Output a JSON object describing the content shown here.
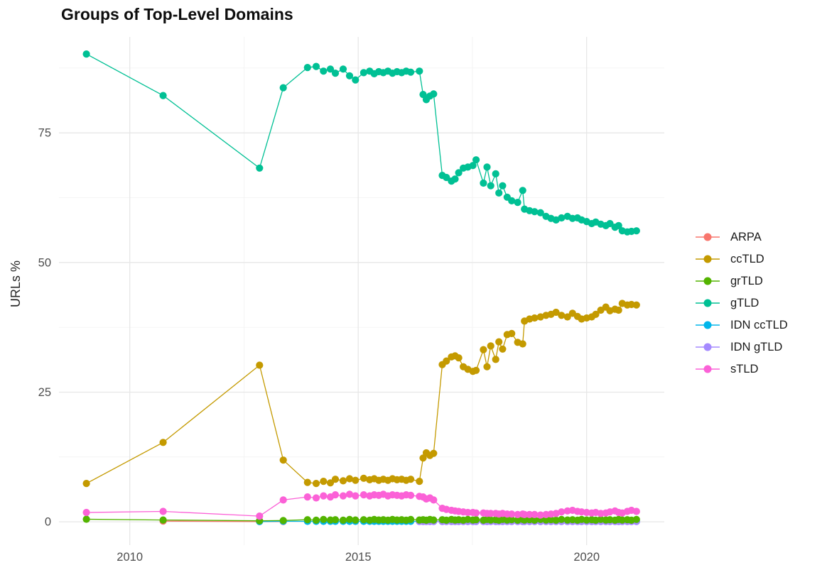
{
  "chart_data": {
    "type": "line",
    "title": "Groups of Top-Level Domains",
    "xlabel": "",
    "ylabel": "URLs %",
    "legend_position": "right",
    "grid": {
      "major_color": "#e7e7e7",
      "minor_color": "#f2f2f2",
      "background": "#ffffff"
    },
    "x_domain": [
      2008.45,
      2021.7
    ],
    "y_domain": [
      -4.5,
      93.5
    ],
    "x_ticks": [
      {
        "value": 2010,
        "label": "2010"
      },
      {
        "value": 2015,
        "label": "2015"
      },
      {
        "value": 2020,
        "label": "2020"
      }
    ],
    "x_minor": [
      2012.5,
      2017.5
    ],
    "y_ticks": [
      {
        "value": 0,
        "label": "0"
      },
      {
        "value": 25,
        "label": "25"
      },
      {
        "value": 50,
        "label": "50"
      },
      {
        "value": 75,
        "label": "75"
      }
    ],
    "y_minor": [
      12.5,
      37.5,
      62.5,
      87.5
    ],
    "draw_order": [
      "ARPA",
      "IDN ccTLD",
      "IDN gTLD",
      "ccTLD",
      "gTLD",
      "grTLD",
      "sTLD"
    ],
    "dense_x": [
      2013.89,
      2014.08,
      2014.24,
      2014.39,
      2014.5,
      2014.67,
      2014.81,
      2014.94,
      2015.12,
      2015.25,
      2015.35,
      2015.45,
      2015.55,
      2015.65,
      2015.75,
      2015.85,
      2015.95,
      2016.05,
      2016.15,
      2016.34,
      2016.42,
      2016.49,
      2016.57,
      2016.65,
      2016.84,
      2016.93,
      2017.04,
      2017.12,
      2017.2,
      2017.3,
      2017.4,
      2017.51,
      2017.58,
      2017.74,
      2017.82,
      2017.9,
      2018.01,
      2018.08,
      2018.16,
      2018.26,
      2018.36,
      2018.49,
      2018.6,
      2018.64,
      2018.75,
      2018.86,
      2018.99,
      2019.11,
      2019.22,
      2019.33,
      2019.45,
      2019.58,
      2019.69,
      2019.8,
      2019.89,
      2020.0,
      2020.11,
      2020.2,
      2020.31,
      2020.42,
      2020.51,
      2020.62,
      2020.7,
      2020.78,
      2020.89,
      2020.98,
      2021.09
    ],
    "series": [
      {
        "name": "ARPA",
        "color": "#F8766D",
        "points": [
          [
            2010.73,
            0.12
          ],
          [
            2012.84,
            0.05
          ],
          [
            2013.36,
            0.05
          ]
        ]
      },
      {
        "name": "ccTLD",
        "color": "#C49A00",
        "points": [
          [
            2009.05,
            7.4
          ],
          [
            2010.73,
            15.3
          ],
          [
            2012.84,
            30.2
          ],
          [
            2013.36,
            11.9
          ]
        ],
        "x_ref": "dense_x",
        "y": [
          7.6,
          7.4,
          7.8,
          7.5,
          8.2,
          7.9,
          8.3,
          8.0,
          8.4,
          8.1,
          8.3,
          8.0,
          8.2,
          8.0,
          8.3,
          8.1,
          8.2,
          8.0,
          8.2,
          7.8,
          12.3,
          13.3,
          12.8,
          13.2,
          30.3,
          31.0,
          31.8,
          32.0,
          31.6,
          29.9,
          29.4,
          29.0,
          29.2,
          33.2,
          29.9,
          33.9,
          31.3,
          34.7,
          33.3,
          36.1,
          36.3,
          34.6,
          34.3,
          38.7,
          39.1,
          39.3,
          39.5,
          39.8,
          40.0,
          40.4,
          39.8,
          39.5,
          40.2,
          39.6,
          39.1,
          39.3,
          39.5,
          40.0,
          40.8,
          41.4,
          40.7,
          41.0,
          40.8,
          42.1,
          41.8,
          41.9,
          41.8
        ]
      },
      {
        "name": "grTLD",
        "color": "#53B400",
        "points": [
          [
            2009.05,
            0.5
          ],
          [
            2010.73,
            0.35
          ],
          [
            2012.84,
            0.2
          ],
          [
            2013.36,
            0.25
          ]
        ],
        "x_ref": "dense_x",
        "y": [
          0.4,
          0.3,
          0.45,
          0.35,
          0.4,
          0.3,
          0.45,
          0.35,
          0.4,
          0.3,
          0.45,
          0.35,
          0.4,
          0.3,
          0.45,
          0.35,
          0.4,
          0.3,
          0.45,
          0.35,
          0.4,
          0.3,
          0.45,
          0.35,
          0.4,
          0.3,
          0.45,
          0.35,
          0.4,
          0.3,
          0.45,
          0.35,
          0.4,
          0.3,
          0.45,
          0.35,
          0.4,
          0.3,
          0.45,
          0.35,
          0.4,
          0.3,
          0.45,
          0.35,
          0.4,
          0.3,
          0.45,
          0.35,
          0.4,
          0.3,
          0.45,
          0.35,
          0.4,
          0.3,
          0.45,
          0.35,
          0.4,
          0.3,
          0.45,
          0.35,
          0.4,
          0.3,
          0.45,
          0.35,
          0.4,
          0.3,
          0.45
        ]
      },
      {
        "name": "gTLD",
        "color": "#00C094",
        "points": [
          [
            2009.05,
            90.2
          ],
          [
            2010.73,
            82.2
          ],
          [
            2012.84,
            68.2
          ],
          [
            2013.36,
            83.7
          ]
        ],
        "x_ref": "dense_x",
        "y": [
          87.6,
          87.8,
          86.9,
          87.3,
          86.5,
          87.3,
          86.0,
          85.2,
          86.6,
          86.9,
          86.4,
          86.8,
          86.6,
          86.9,
          86.5,
          86.8,
          86.6,
          86.9,
          86.7,
          86.9,
          82.4,
          81.4,
          82.1,
          82.5,
          66.8,
          66.4,
          65.7,
          66.1,
          67.3,
          68.2,
          68.4,
          68.7,
          69.8,
          65.3,
          68.4,
          64.8,
          67.1,
          63.4,
          64.8,
          62.6,
          61.9,
          61.6,
          63.9,
          60.3,
          60.0,
          59.8,
          59.6,
          58.9,
          58.5,
          58.2,
          58.6,
          58.9,
          58.5,
          58.6,
          58.2,
          57.9,
          57.5,
          57.8,
          57.4,
          57.1,
          57.5,
          56.8,
          57.1,
          56.1,
          55.9,
          56.0,
          56.1
        ]
      },
      {
        "name": "IDN ccTLD",
        "color": "#00B6EB",
        "points": [
          [
            2012.84,
            0.05
          ],
          [
            2013.36,
            0.1
          ]
        ],
        "x_ref": "dense_x",
        "y_const": 0.08
      },
      {
        "name": "IDN gTLD",
        "color": "#A58AFF",
        "points": [],
        "x_ref": "dense_x",
        "x_start_index": 19,
        "y_const": 0.05
      },
      {
        "name": "sTLD",
        "color": "#FB61D7",
        "points": [
          [
            2009.05,
            1.8
          ],
          [
            2010.73,
            2.0
          ],
          [
            2012.84,
            1.1
          ],
          [
            2013.36,
            4.2
          ]
        ],
        "x_ref": "dense_x",
        "y": [
          4.8,
          4.6,
          5.0,
          4.8,
          5.2,
          5.0,
          5.3,
          5.0,
          5.2,
          5.0,
          5.2,
          5.1,
          5.3,
          5.0,
          5.2,
          5.1,
          5.0,
          5.2,
          5.1,
          4.9,
          4.8,
          4.4,
          4.6,
          4.2,
          2.6,
          2.4,
          2.2,
          2.1,
          2.0,
          1.9,
          1.8,
          1.8,
          1.7,
          1.7,
          1.6,
          1.6,
          1.6,
          1.5,
          1.6,
          1.5,
          1.5,
          1.4,
          1.5,
          1.4,
          1.4,
          1.4,
          1.3,
          1.4,
          1.5,
          1.6,
          1.9,
          2.1,
          2.2,
          2.0,
          1.9,
          1.8,
          1.7,
          1.8,
          1.6,
          1.7,
          1.9,
          2.1,
          1.8,
          1.7,
          2.0,
          2.2,
          2.0
        ]
      }
    ]
  }
}
